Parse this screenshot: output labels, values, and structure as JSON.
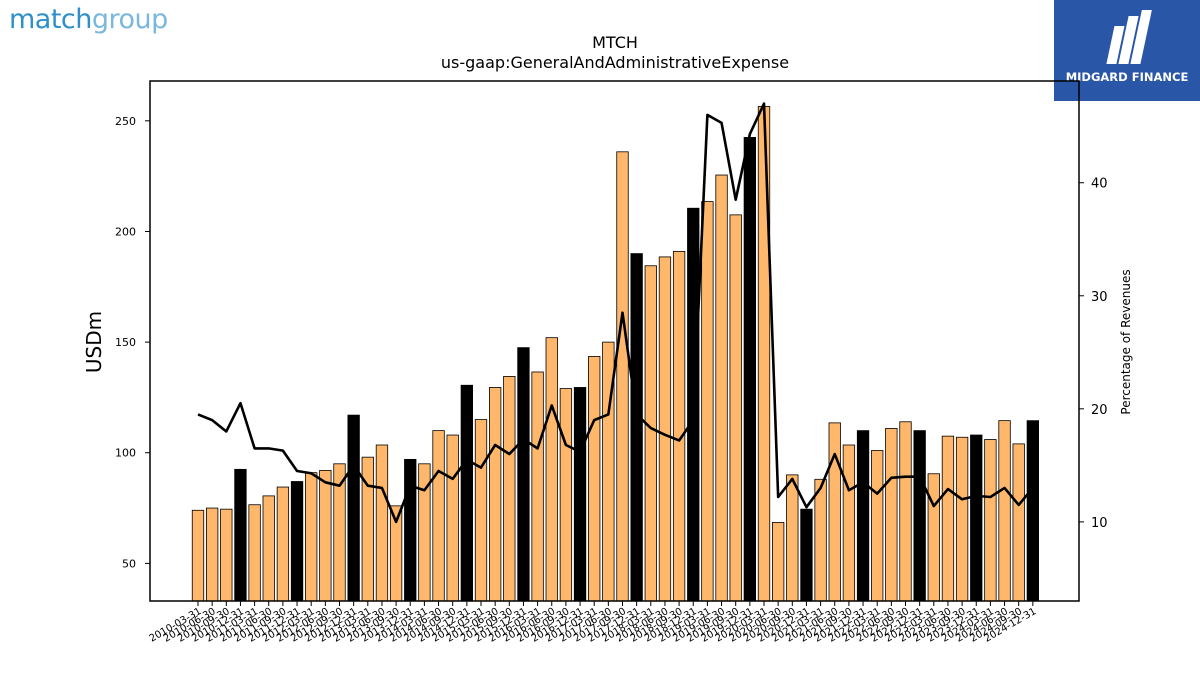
{
  "logos": {
    "left_part1": "match",
    "left_part2": "group",
    "right_brand": "MIDGARD FINANCE"
  },
  "chart_data": {
    "type": "bar",
    "title": "MTCH",
    "subtitle": "us-gaap:GeneralAndAdministrativeExpense",
    "ylabel": "USDm",
    "y2label": "Percentage of Revenues",
    "ylim": [
      33,
      268
    ],
    "y2lim": [
      3,
      49
    ],
    "yticks": [
      50,
      100,
      150,
      200,
      250
    ],
    "y2ticks": [
      10,
      20,
      30,
      40
    ],
    "colors": {
      "quarter": "#ffb86b",
      "annual": "#000000",
      "line": "#000000"
    },
    "categories": [
      "2010-03-31",
      "2010-06-30",
      "2010-09-30",
      "2010-12-31",
      "2011-03-31",
      "2011-06-30",
      "2011-09-30",
      "2011-12-31",
      "2012-03-31",
      "2012-06-30",
      "2012-09-30",
      "2012-12-31",
      "2013-03-31",
      "2013-06-30",
      "2013-09-30",
      "2013-12-31",
      "2014-03-31",
      "2014-06-30",
      "2014-09-30",
      "2014-12-31",
      "2015-03-31",
      "2015-06-30",
      "2015-09-30",
      "2015-12-31",
      "2016-03-31",
      "2016-06-30",
      "2016-09-30",
      "2016-12-31",
      "2017-03-31",
      "2017-06-30",
      "2017-09-30",
      "2017-12-31",
      "2018-03-31",
      "2018-06-30",
      "2018-09-30",
      "2018-12-31",
      "2019-03-31",
      "2019-06-30",
      "2019-09-30",
      "2019-12-31",
      "2020-03-31",
      "2020-06-30",
      "2020-09-30",
      "2020-12-31",
      "2021-03-31",
      "2021-06-30",
      "2021-09-30",
      "2021-12-31",
      "2022-03-31",
      "2022-06-30",
      "2022-09-30",
      "2022-12-31",
      "2023-03-31",
      "2023-06-30",
      "2023-09-30",
      "2023-12-31",
      "2024-03-31",
      "2024-06-30",
      "2024-09-30",
      "2024-12-31"
    ],
    "annual_flags": [
      0,
      0,
      0,
      1,
      0,
      0,
      0,
      1,
      0,
      0,
      0,
      1,
      0,
      0,
      0,
      1,
      0,
      0,
      0,
      1,
      0,
      0,
      0,
      1,
      0,
      0,
      0,
      1,
      0,
      0,
      0,
      1,
      0,
      0,
      0,
      1,
      0,
      0,
      0,
      1,
      0,
      0,
      0,
      1,
      0,
      0,
      0,
      1,
      0,
      0,
      0,
      1,
      0,
      0,
      0,
      1,
      0,
      0,
      0,
      1
    ],
    "series": [
      {
        "type": "bar",
        "values": [
          74,
          75,
          74.5,
          92.5,
          76.5,
          80.5,
          84.5,
          87,
          91,
          92,
          95,
          117,
          98,
          103.5,
          76,
          97,
          95,
          110,
          108,
          130.5,
          115,
          129.5,
          134.5,
          147.5,
          136.5,
          152,
          129,
          129.5,
          143.5,
          150,
          236,
          190,
          184.5,
          188.5,
          191,
          210.5,
          213.5,
          225.5,
          207.5,
          242.5,
          256.5,
          68.5,
          90,
          74.5,
          88,
          113.5,
          103.5,
          110,
          101,
          111,
          114,
          110,
          90.5,
          107.5,
          107,
          108,
          106,
          114.5,
          104,
          114.5
        ]
      },
      {
        "type": "line",
        "axis": "right",
        "values": [
          19.5,
          19,
          18,
          20.5,
          16.5,
          16.5,
          16.3,
          14.5,
          14.3,
          13.5,
          13.2,
          15,
          13.2,
          13,
          10,
          13.2,
          12.8,
          14.5,
          13.8,
          15.5,
          14.8,
          16.8,
          16,
          17.3,
          16.5,
          20.3,
          16.8,
          16.2,
          19,
          19.5,
          28.5,
          19.5,
          18.3,
          17.7,
          17.2,
          19,
          46,
          45.3,
          38.5,
          44.3,
          47,
          12.2,
          13.8,
          11.3,
          13,
          16,
          12.8,
          13.5,
          12.5,
          13.9,
          14,
          14,
          11.4,
          12.9,
          12,
          12.3,
          12.2,
          13,
          11.5,
          13
        ]
      }
    ]
  }
}
